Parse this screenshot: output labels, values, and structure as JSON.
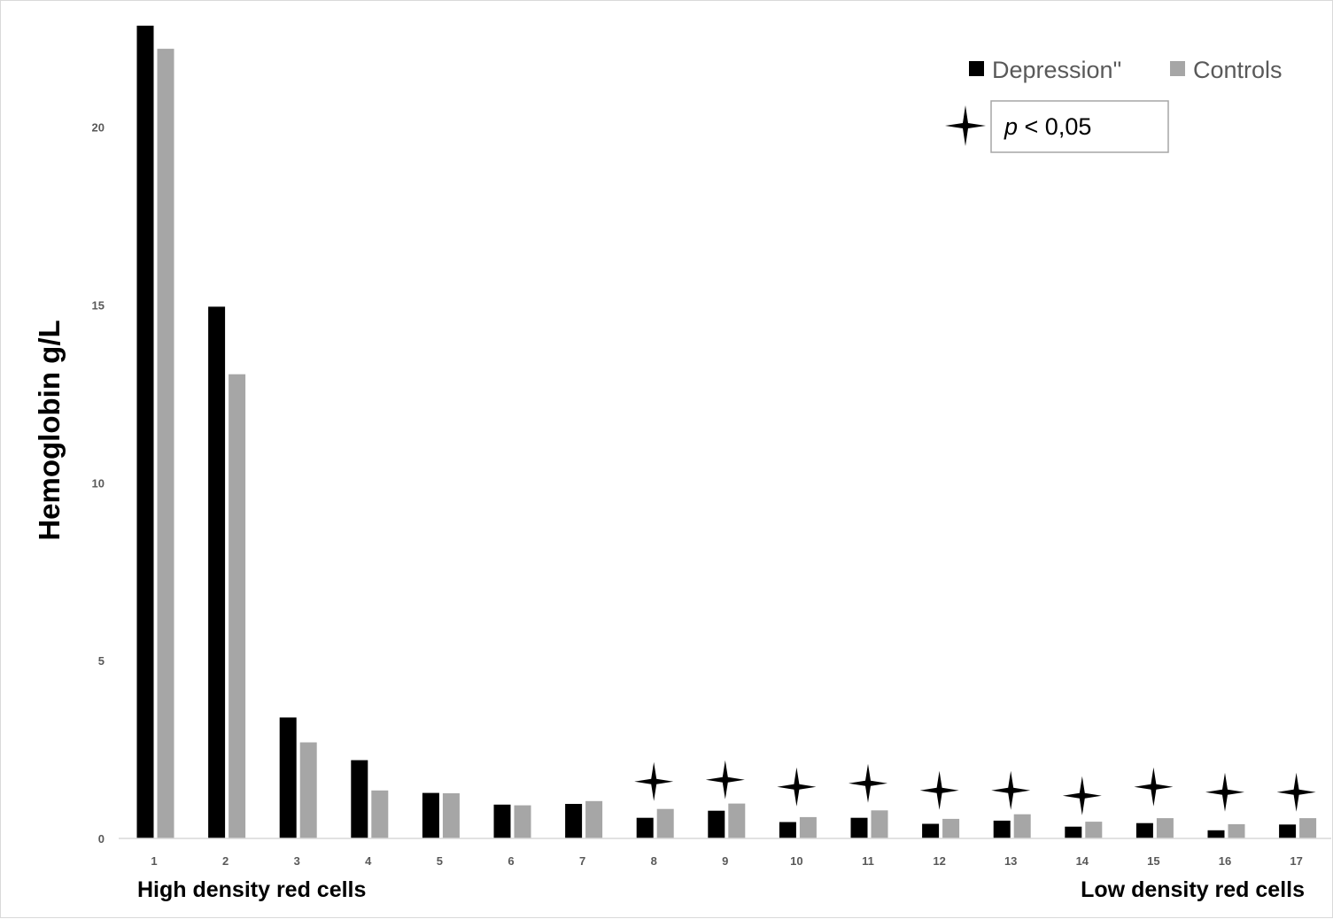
{
  "chart_data": {
    "type": "bar",
    "categories": [
      "1",
      "2",
      "3",
      "4",
      "5",
      "6",
      "7",
      "8",
      "9",
      "10",
      "11",
      "12",
      "13",
      "14",
      "15",
      "16",
      "17"
    ],
    "series": [
      {
        "name": "Depression\"",
        "color": "#000000",
        "values": [
          22.85,
          14.95,
          3.4,
          2.2,
          1.28,
          0.95,
          0.97,
          0.58,
          0.78,
          0.46,
          0.58,
          0.41,
          0.5,
          0.33,
          0.43,
          0.23,
          0.39
        ]
      },
      {
        "name": "Controls",
        "color": "#a6a6a6",
        "values": [
          22.2,
          13.05,
          2.7,
          1.35,
          1.27,
          0.93,
          1.05,
          0.83,
          0.98,
          0.6,
          0.79,
          0.55,
          0.68,
          0.47,
          0.57,
          0.4,
          0.57
        ]
      }
    ],
    "significant_categories": [
      "8",
      "9",
      "10",
      "11",
      "12",
      "13",
      "14",
      "15",
      "16",
      "17"
    ],
    "significance_levels": [
      1.6,
      1.65,
      1.45,
      1.55,
      1.35,
      1.35,
      1.2,
      1.45,
      1.3,
      1.3
    ],
    "yticks": [
      0,
      5,
      10,
      15,
      20
    ],
    "ylim": [
      0,
      23
    ],
    "ylabel": "Hemoglobin g/L",
    "xlabel_left": "High density red cells",
    "xlabel_right": "Low density red cells",
    "legend": {
      "position": "top-right",
      "significance_label_p": "p",
      "significance_label_rest": " < 0,05"
    },
    "grid": false
  }
}
